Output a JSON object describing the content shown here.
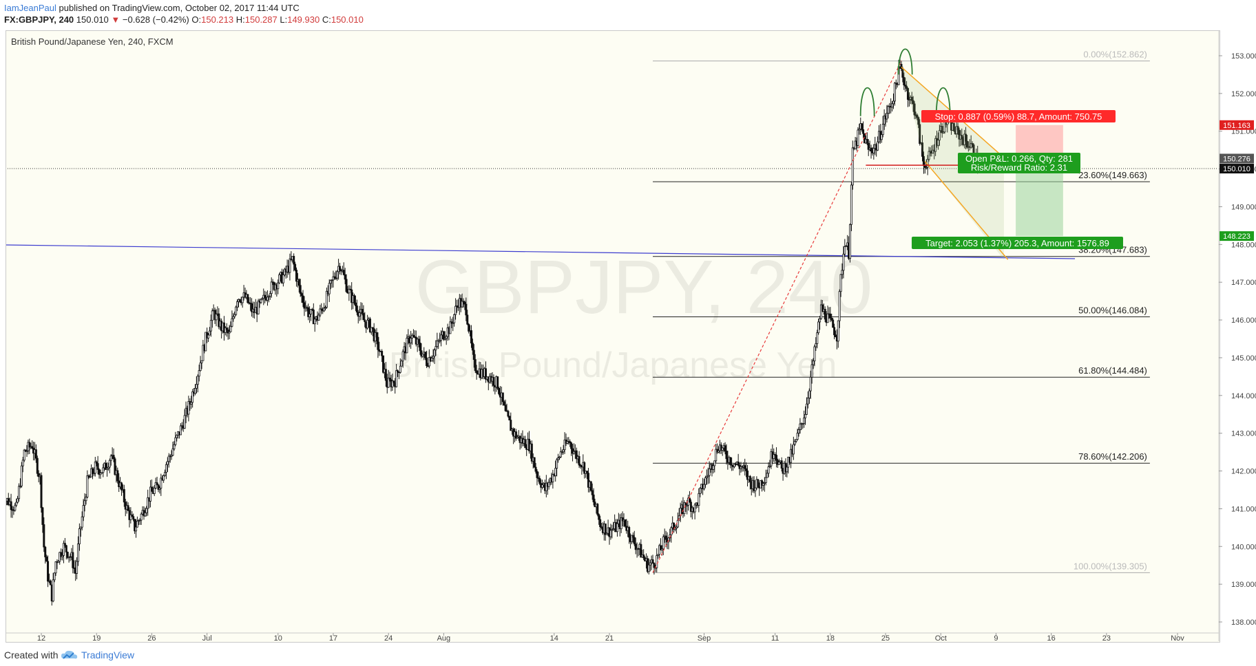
{
  "header": {
    "author": "IamJeanPaul",
    "published": "published on TradingView.com, October 02, 2017 11:44 UTC",
    "symbol": "FX:GBPJPY, 240",
    "last": "150.010",
    "change_arrow": "▼",
    "change": "−0.628 (−0.42%)",
    "o_label": "O:",
    "o": "150.213",
    "h_label": "H:",
    "h": "150.287",
    "l_label": "L:",
    "l": "149.930",
    "c_label": "C:",
    "c": "150.010"
  },
  "chart_title": "British Pound/Japanese Yen, 240, FXCM",
  "watermark": {
    "line1": "GBPJPY, 240",
    "line2": "British Pound/Japanese Yen"
  },
  "footer": {
    "created_with": "Created with",
    "brand": "TradingView"
  },
  "colors": {
    "background": "#fdfdf3",
    "candle": "#111111",
    "fib_line": "#222222",
    "fib_extreme": "#aaaaaa",
    "trendline": "#3b3bcf",
    "channel": "#f5a623",
    "head_shoulders": "#2e7d32",
    "stop": "#ff2a2a",
    "target": "#1e9e1e",
    "neckline": "#d11a1a",
    "dashed": "#e83a3a"
  },
  "chart_data": {
    "type": "candlestick",
    "title": "British Pound/Japanese Yen, 240, FXCM",
    "ylim": [
      137.7,
      153.5
    ],
    "y_ticks": [
      "138.000",
      "139.000",
      "140.000",
      "141.000",
      "142.000",
      "143.000",
      "144.000",
      "145.000",
      "146.000",
      "147.000",
      "148.000",
      "149.000",
      "150.000",
      "151.000",
      "152.000",
      "153.000"
    ],
    "x_ticks": [
      "12",
      "19",
      "26",
      "Jul",
      "10",
      "17",
      "24",
      "Aug",
      "14",
      "21",
      "Sep",
      "11",
      "18",
      "25",
      "Oct",
      "9",
      "16",
      "23",
      "Nov"
    ],
    "x_tick_positions_day": [
      0,
      7,
      14,
      21,
      30,
      37,
      44,
      51,
      65,
      72,
      84,
      93,
      100,
      107,
      114,
      121,
      128,
      135,
      144
    ],
    "x_range_days": [
      -5,
      151
    ],
    "price_path": [
      [
        -5,
        141.3
      ],
      [
        -4,
        141.2
      ],
      [
        -3,
        141.0
      ],
      [
        -2,
        142.5
      ],
      [
        -1,
        142.7
      ],
      [
        0,
        141.8
      ],
      [
        0.5,
        140.0
      ],
      [
        1,
        139.2
      ],
      [
        1.5,
        138.7
      ],
      [
        2,
        139.6
      ],
      [
        3,
        140.0
      ],
      [
        4,
        139.7
      ],
      [
        4.5,
        139.3
      ],
      [
        5,
        140.3
      ],
      [
        6,
        141.7
      ],
      [
        7,
        142.1
      ],
      [
        8,
        142.0
      ],
      [
        9,
        142.4
      ],
      [
        10,
        141.7
      ],
      [
        11,
        141.0
      ],
      [
        12,
        140.5
      ],
      [
        13,
        140.9
      ],
      [
        14,
        141.4
      ],
      [
        15,
        141.6
      ],
      [
        16,
        142.2
      ],
      [
        16.5,
        142.4
      ],
      [
        17,
        142.7
      ],
      [
        18,
        143.2
      ],
      [
        19,
        143.8
      ],
      [
        20,
        144.6
      ],
      [
        21,
        145.5
      ],
      [
        22,
        146.2
      ],
      [
        23,
        145.8
      ],
      [
        24,
        145.6
      ],
      [
        25,
        146.6
      ],
      [
        26,
        146.6
      ],
      [
        27,
        146.2
      ],
      [
        28,
        146.4
      ],
      [
        29,
        146.8
      ],
      [
        30,
        147.0
      ],
      [
        31,
        147.2
      ],
      [
        32,
        147.6
      ],
      [
        33,
        146.7
      ],
      [
        34,
        146.2
      ],
      [
        35,
        146.0
      ],
      [
        36,
        146.4
      ],
      [
        37,
        147.0
      ],
      [
        38,
        147.5
      ],
      [
        39,
        146.8
      ],
      [
        40,
        146.4
      ],
      [
        41,
        146.0
      ],
      [
        42,
        145.8
      ],
      [
        43,
        145.2
      ],
      [
        44,
        144.3
      ],
      [
        45,
        144.4
      ],
      [
        46,
        145.1
      ],
      [
        47,
        145.6
      ],
      [
        48,
        145.3
      ],
      [
        49,
        144.9
      ],
      [
        50,
        145.2
      ],
      [
        51,
        145.6
      ],
      [
        52,
        145.8
      ],
      [
        53,
        146.5
      ],
      [
        54,
        146.3
      ],
      [
        55,
        144.8
      ],
      [
        56,
        144.6
      ],
      [
        57,
        144.5
      ],
      [
        58,
        144.3
      ],
      [
        59,
        143.5
      ],
      [
        60,
        143.0
      ],
      [
        61,
        142.8
      ],
      [
        62,
        142.7
      ],
      [
        63,
        141.9
      ],
      [
        64,
        141.5
      ],
      [
        65,
        141.9
      ],
      [
        66,
        142.5
      ],
      [
        67,
        142.8
      ],
      [
        68,
        142.4
      ],
      [
        69,
        142.1
      ],
      [
        70,
        141.3
      ],
      [
        71,
        140.6
      ],
      [
        72,
        140.4
      ],
      [
        73,
        140.5
      ],
      [
        74,
        140.7
      ],
      [
        75,
        140.2
      ],
      [
        76,
        139.9
      ],
      [
        77,
        139.5
      ],
      [
        78,
        139.6
      ],
      [
        79,
        140.1
      ],
      [
        80,
        140.4
      ],
      [
        81,
        140.8
      ],
      [
        82,
        141.2
      ],
      [
        83,
        141.0
      ],
      [
        84,
        141.6
      ],
      [
        85,
        142.1
      ],
      [
        86,
        142.7
      ],
      [
        87,
        142.4
      ],
      [
        88,
        142.2
      ],
      [
        89,
        142.1
      ],
      [
        90,
        141.7
      ],
      [
        91,
        141.6
      ],
      [
        92,
        141.9
      ],
      [
        93,
        142.6
      ],
      [
        94,
        142.0
      ],
      [
        95,
        142.3
      ],
      [
        96,
        142.9
      ],
      [
        97,
        143.6
      ],
      [
        98,
        144.9
      ],
      [
        99,
        146.3
      ],
      [
        100,
        146.0
      ],
      [
        101,
        145.6
      ],
      [
        101.5,
        147.1
      ],
      [
        102,
        148.1
      ],
      [
        102.5,
        147.8
      ],
      [
        103,
        150.4
      ],
      [
        104,
        151.1
      ],
      [
        105,
        150.5
      ],
      [
        106,
        150.6
      ],
      [
        107,
        151.3
      ],
      [
        108,
        151.8
      ],
      [
        109,
        152.7
      ],
      [
        110,
        152.0
      ],
      [
        111,
        151.5
      ],
      [
        112,
        150.1
      ],
      [
        113,
        150.4
      ],
      [
        114,
        151.0
      ],
      [
        115,
        151.3
      ],
      [
        116,
        151.0
      ],
      [
        117,
        150.8
      ],
      [
        118,
        150.6
      ],
      [
        119,
        150.1
      ]
    ],
    "fibonacci": [
      {
        "level": "0.00%(152.862)",
        "price": 152.862
      },
      {
        "level": "23.60%(149.663)",
        "price": 149.663
      },
      {
        "level": "38.20%(147.683)",
        "price": 147.683
      },
      {
        "level": "50.00%(146.084)",
        "price": 146.084
      },
      {
        "level": "61.80%(144.484)",
        "price": 144.484
      },
      {
        "level": "78.60%(142.206)",
        "price": 142.206
      },
      {
        "level": "100.00%(139.305)",
        "price": 139.305
      }
    ],
    "price_labels": [
      {
        "text": "151.163",
        "price": 151.163,
        "color": "#e02020"
      },
      {
        "text": "150.276",
        "price": 150.276,
        "color": "#555555"
      },
      {
        "text": "150.010",
        "price": 150.01,
        "color": "#111111"
      },
      {
        "text": "148.223",
        "price": 148.223,
        "color": "#1e9e1e"
      }
    ],
    "annotations": {
      "stop": "Stop: 0.887 (0.59%) 88.7, Amount: 750.75",
      "open_pnl": "Open P&L: 0.266, Qty: 281",
      "risk_reward": "Risk/Reward Ratio: 2.31",
      "target": "Target: 2.053 (1.37%) 205.3, Amount: 1576.89"
    },
    "grid": false,
    "watermark": "GBPJPY, 240"
  }
}
